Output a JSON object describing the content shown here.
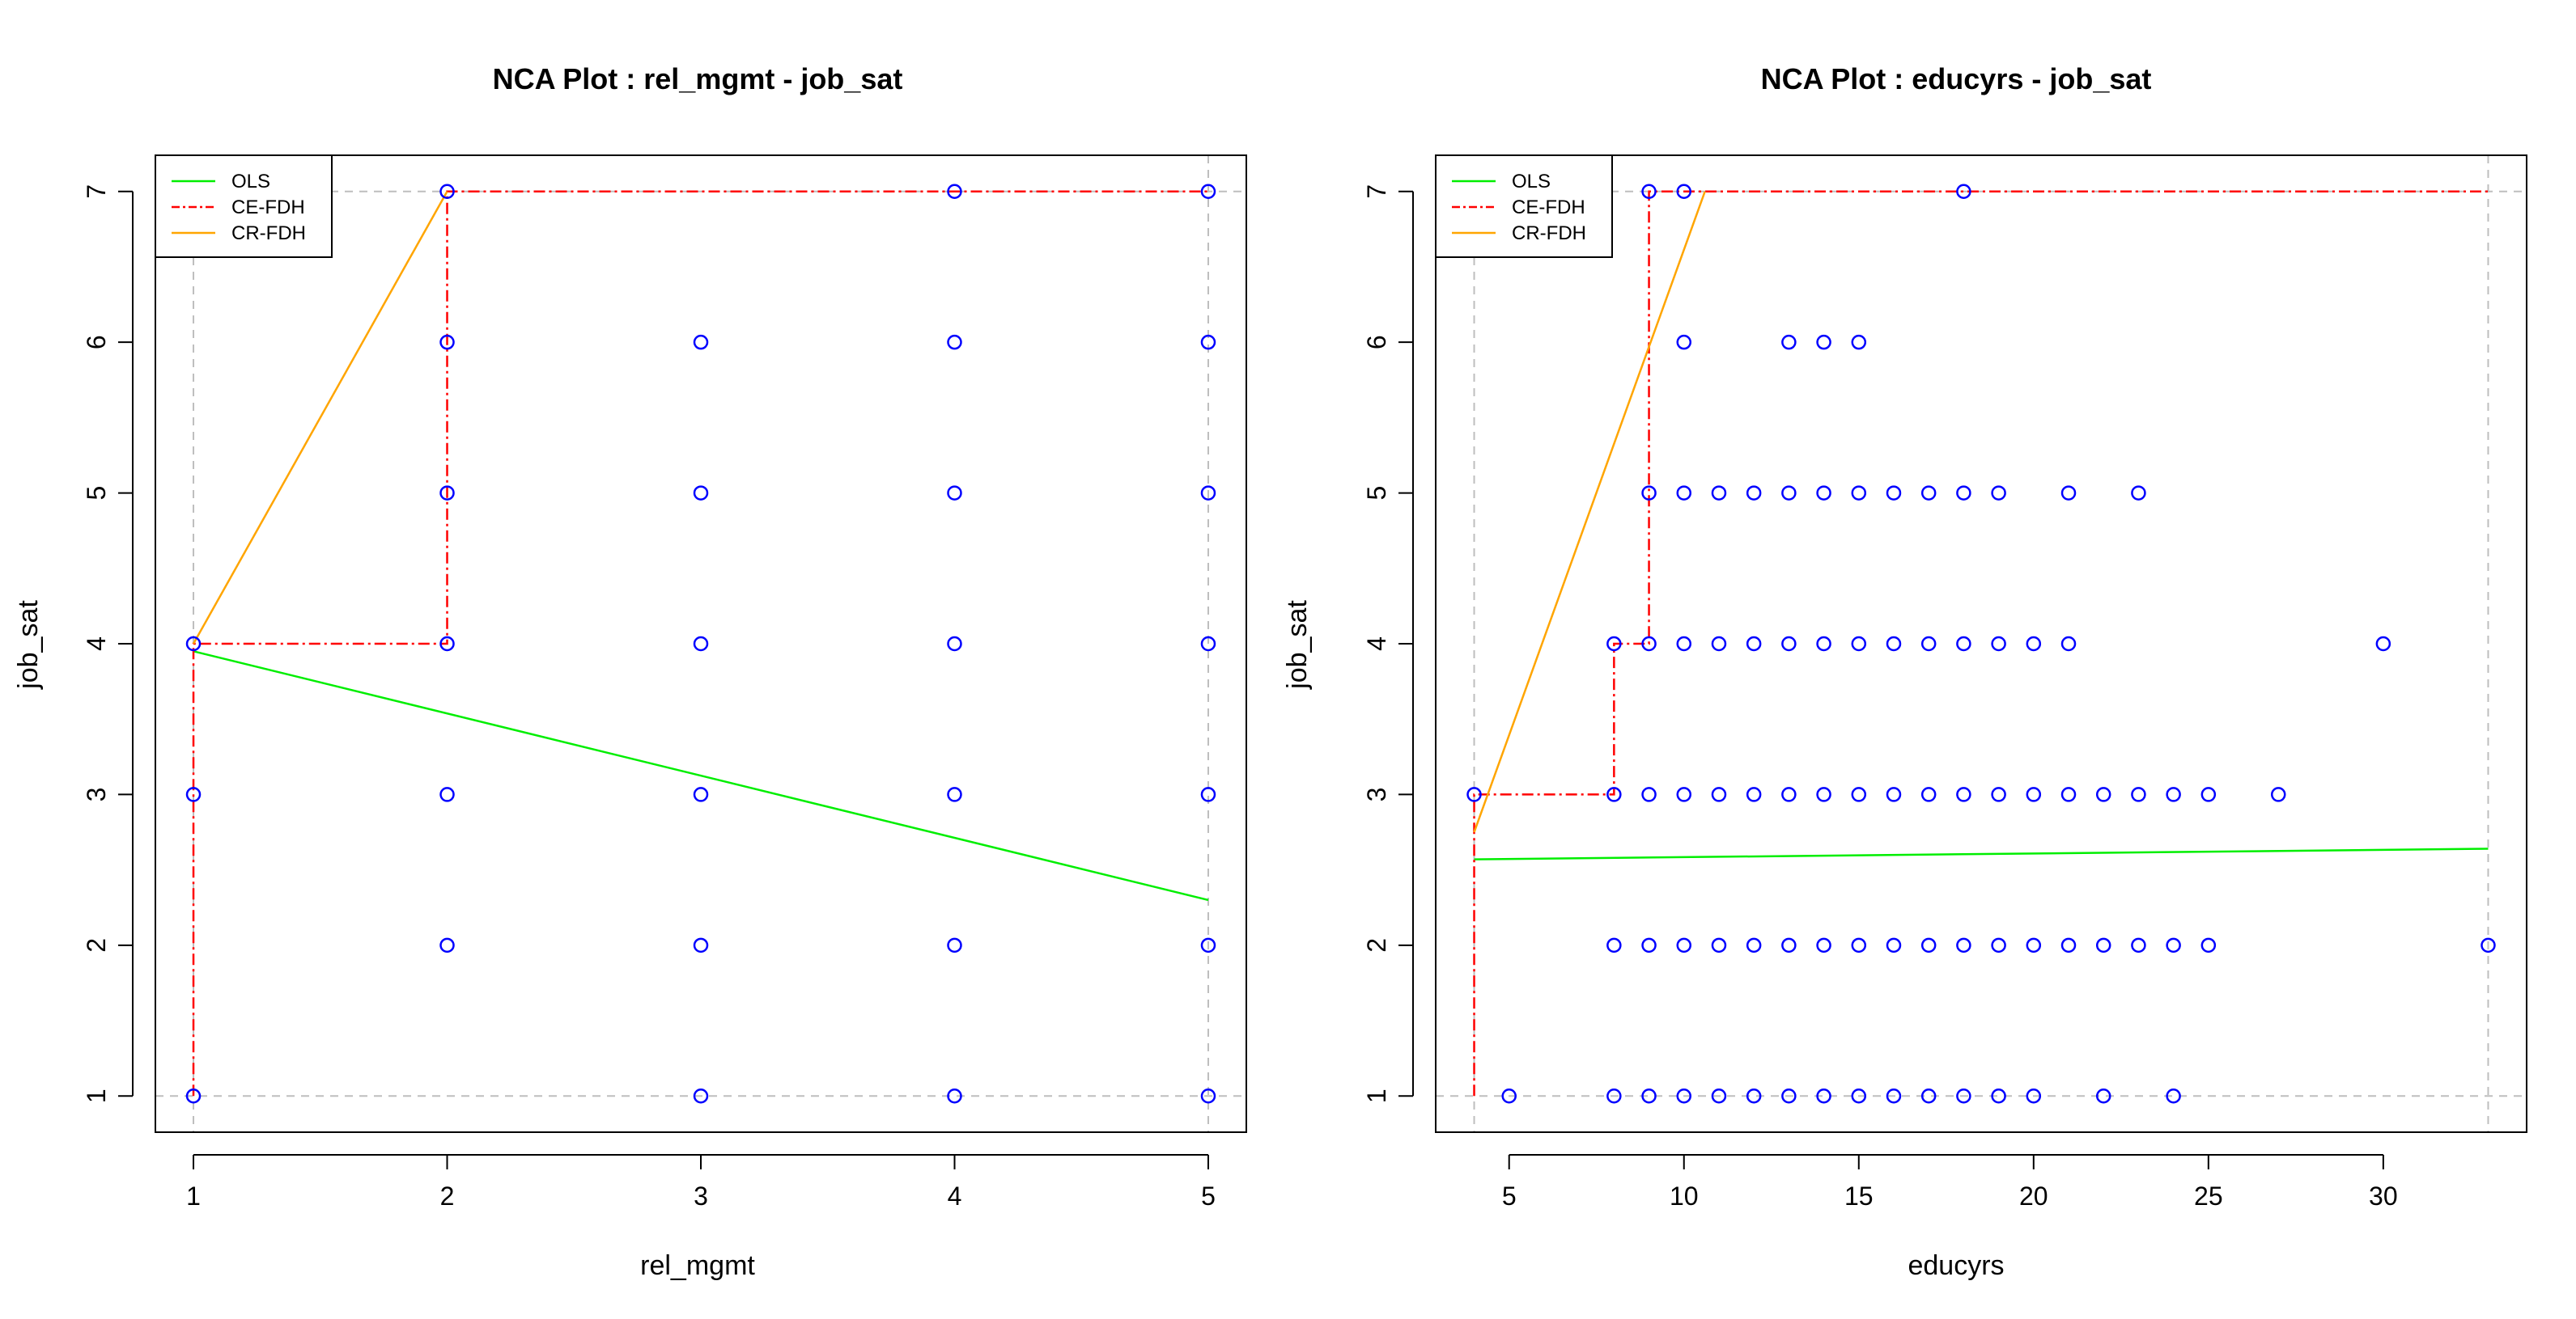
{
  "chart_data": [
    {
      "type": "scatter",
      "title": "NCA Plot : rel_mgmt - job_sat",
      "xlabel": "rel_mgmt",
      "ylabel": "job_sat",
      "xlim": [
        0.85,
        5.15
      ],
      "ylim": [
        0.76,
        7.24
      ],
      "xticks": [
        1,
        2,
        3,
        4,
        5
      ],
      "yticks": [
        1,
        2,
        3,
        4,
        5,
        6,
        7
      ],
      "grid": {
        "x": [
          1,
          5
        ],
        "y": [
          1,
          7
        ]
      },
      "legend": {
        "position": "top-left",
        "entries": [
          {
            "label": "OLS",
            "color": "#00ee00",
            "style": "solid"
          },
          {
            "label": "CE-FDH",
            "color": "#ff0000",
            "style": "dashdot"
          },
          {
            "label": "CR-FDH",
            "color": "#ffa500",
            "style": "solid"
          }
        ]
      },
      "points": {
        "color": "#0000ff",
        "xy": [
          [
            1,
            1
          ],
          [
            1,
            3
          ],
          [
            1,
            4
          ],
          [
            2,
            2
          ],
          [
            2,
            3
          ],
          [
            2,
            4
          ],
          [
            2,
            5
          ],
          [
            2,
            6
          ],
          [
            2,
            7
          ],
          [
            3,
            1
          ],
          [
            3,
            2
          ],
          [
            3,
            3
          ],
          [
            3,
            4
          ],
          [
            3,
            5
          ],
          [
            3,
            6
          ],
          [
            4,
            1
          ],
          [
            4,
            2
          ],
          [
            4,
            3
          ],
          [
            4,
            4
          ],
          [
            4,
            5
          ],
          [
            4,
            6
          ],
          [
            4,
            7
          ],
          [
            5,
            1
          ],
          [
            5,
            2
          ],
          [
            5,
            3
          ],
          [
            5,
            4
          ],
          [
            5,
            5
          ],
          [
            5,
            6
          ],
          [
            5,
            7
          ]
        ]
      },
      "lines": [
        {
          "name": "OLS",
          "color": "#00ee00",
          "dash": "",
          "xy": [
            [
              1,
              3.95
            ],
            [
              5,
              2.3
            ]
          ]
        },
        {
          "name": "CE-FDH",
          "color": "#ff0000",
          "dash": "14 5 3 5",
          "xy": [
            [
              1,
              1
            ],
            [
              1,
              4
            ],
            [
              2,
              4
            ],
            [
              2,
              7
            ],
            [
              5,
              7
            ]
          ]
        },
        {
          "name": "CR-FDH",
          "color": "#ffa500",
          "dash": "",
          "xy": [
            [
              1,
              4
            ],
            [
              2,
              7
            ]
          ]
        }
      ]
    },
    {
      "type": "scatter",
      "title": "NCA Plot : educyrs - job_sat",
      "xlabel": "educyrs",
      "ylabel": "job_sat",
      "xlim": [
        2.9,
        34.1
      ],
      "ylim": [
        0.76,
        7.24
      ],
      "xticks": [
        5,
        10,
        15,
        20,
        25,
        30
      ],
      "yticks": [
        1,
        2,
        3,
        4,
        5,
        6,
        7
      ],
      "grid": {
        "x": [
          4,
          33
        ],
        "y": [
          1,
          7
        ]
      },
      "legend": {
        "position": "top-left",
        "entries": [
          {
            "label": "OLS",
            "color": "#00ee00",
            "style": "solid"
          },
          {
            "label": "CE-FDH",
            "color": "#ff0000",
            "style": "dashdot"
          },
          {
            "label": "CR-FDH",
            "color": "#ffa500",
            "style": "solid"
          }
        ]
      },
      "points": {
        "color": "#0000ff",
        "xy": [
          [
            9,
            7
          ],
          [
            10,
            7
          ],
          [
            18,
            7
          ],
          [
            10,
            6
          ],
          [
            13,
            6
          ],
          [
            14,
            6
          ],
          [
            15,
            6
          ],
          [
            9,
            5
          ],
          [
            10,
            5
          ],
          [
            11,
            5
          ],
          [
            12,
            5
          ],
          [
            13,
            5
          ],
          [
            14,
            5
          ],
          [
            15,
            5
          ],
          [
            16,
            5
          ],
          [
            17,
            5
          ],
          [
            18,
            5
          ],
          [
            19,
            5
          ],
          [
            21,
            5
          ],
          [
            23,
            5
          ],
          [
            8,
            4
          ],
          [
            9,
            4
          ],
          [
            10,
            4
          ],
          [
            11,
            4
          ],
          [
            12,
            4
          ],
          [
            13,
            4
          ],
          [
            14,
            4
          ],
          [
            15,
            4
          ],
          [
            16,
            4
          ],
          [
            17,
            4
          ],
          [
            18,
            4
          ],
          [
            19,
            4
          ],
          [
            20,
            4
          ],
          [
            21,
            4
          ],
          [
            30,
            4
          ],
          [
            4,
            3
          ],
          [
            8,
            3
          ],
          [
            9,
            3
          ],
          [
            10,
            3
          ],
          [
            11,
            3
          ],
          [
            12,
            3
          ],
          [
            13,
            3
          ],
          [
            14,
            3
          ],
          [
            15,
            3
          ],
          [
            16,
            3
          ],
          [
            17,
            3
          ],
          [
            18,
            3
          ],
          [
            19,
            3
          ],
          [
            20,
            3
          ],
          [
            21,
            3
          ],
          [
            22,
            3
          ],
          [
            23,
            3
          ],
          [
            24,
            3
          ],
          [
            25,
            3
          ],
          [
            27,
            3
          ],
          [
            8,
            2
          ],
          [
            9,
            2
          ],
          [
            10,
            2
          ],
          [
            11,
            2
          ],
          [
            12,
            2
          ],
          [
            13,
            2
          ],
          [
            14,
            2
          ],
          [
            15,
            2
          ],
          [
            16,
            2
          ],
          [
            17,
            2
          ],
          [
            18,
            2
          ],
          [
            19,
            2
          ],
          [
            20,
            2
          ],
          [
            21,
            2
          ],
          [
            22,
            2
          ],
          [
            23,
            2
          ],
          [
            24,
            2
          ],
          [
            25,
            2
          ],
          [
            33,
            2
          ],
          [
            5,
            1
          ],
          [
            8,
            1
          ],
          [
            9,
            1
          ],
          [
            10,
            1
          ],
          [
            11,
            1
          ],
          [
            12,
            1
          ],
          [
            13,
            1
          ],
          [
            14,
            1
          ],
          [
            15,
            1
          ],
          [
            16,
            1
          ],
          [
            17,
            1
          ],
          [
            18,
            1
          ],
          [
            19,
            1
          ],
          [
            20,
            1
          ],
          [
            22,
            1
          ],
          [
            24,
            1
          ]
        ]
      },
      "lines": [
        {
          "name": "OLS",
          "color": "#00ee00",
          "dash": "",
          "xy": [
            [
              4,
              2.57
            ],
            [
              33,
              2.64
            ]
          ]
        },
        {
          "name": "CE-FDH",
          "color": "#ff0000",
          "dash": "14 5 3 5",
          "xy": [
            [
              4,
              1
            ],
            [
              4,
              3
            ],
            [
              8,
              3
            ],
            [
              8,
              4
            ],
            [
              9,
              4
            ],
            [
              9,
              7
            ],
            [
              33,
              7
            ]
          ]
        },
        {
          "name": "CR-FDH",
          "color": "#ffa500",
          "dash": "",
          "xy": [
            [
              4,
              2.75
            ],
            [
              10.6,
              7
            ]
          ]
        }
      ]
    }
  ]
}
